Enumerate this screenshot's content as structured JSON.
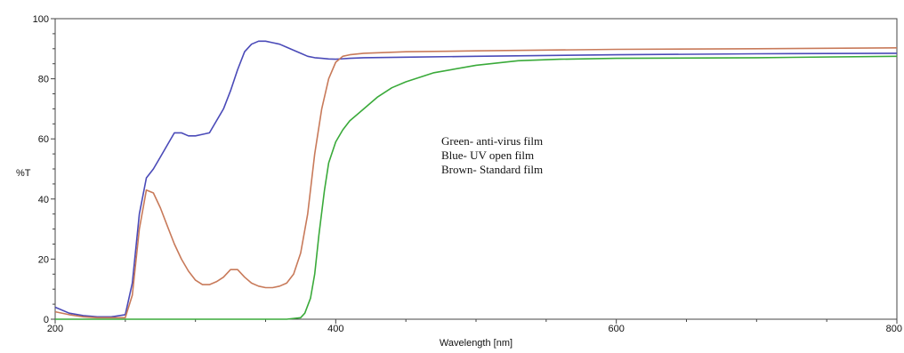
{
  "chart_data": {
    "type": "line",
    "xlabel": "Wavelength [nm]",
    "ylabel": "%T",
    "xlim": [
      200,
      800
    ],
    "ylim": [
      0,
      100
    ],
    "x_ticks": [
      200,
      400,
      600,
      800
    ],
    "y_ticks": [
      0,
      20,
      40,
      60,
      80,
      100
    ],
    "grid": false,
    "annotations": [
      "Green- anti-virus film",
      "Blue- UV open film",
      "Brown- Standard film"
    ],
    "series": [
      {
        "name": "Blue- UV open film",
        "color": "#4a4ab8",
        "x": [
          200,
          210,
          220,
          230,
          240,
          250,
          255,
          260,
          265,
          270,
          275,
          280,
          285,
          290,
          295,
          300,
          305,
          310,
          315,
          320,
          325,
          330,
          335,
          340,
          345,
          350,
          355,
          360,
          365,
          370,
          375,
          380,
          385,
          390,
          395,
          400,
          410,
          420,
          450,
          500,
          600,
          700,
          800
        ],
        "y": [
          4,
          2,
          1.2,
          0.8,
          0.8,
          1.5,
          12,
          35,
          47,
          50,
          54,
          58,
          62,
          62,
          61,
          61,
          61.5,
          62,
          66,
          70,
          76,
          83,
          89,
          91.5,
          92.5,
          92.5,
          92,
          91.5,
          90.5,
          89.5,
          88.5,
          87.5,
          87,
          86.8,
          86.6,
          86.5,
          86.8,
          87,
          87.2,
          87.5,
          88,
          88.3,
          88.5
        ]
      },
      {
        "name": "Brown- Standard film",
        "color": "#c87a5a",
        "x": [
          200,
          210,
          220,
          230,
          240,
          250,
          255,
          260,
          265,
          270,
          275,
          280,
          285,
          290,
          295,
          300,
          305,
          310,
          315,
          320,
          325,
          330,
          335,
          340,
          345,
          350,
          355,
          360,
          365,
          370,
          375,
          380,
          385,
          390,
          395,
          400,
          405,
          410,
          420,
          450,
          500,
          600,
          700,
          800
        ],
        "y": [
          2.5,
          1.5,
          0.8,
          0.5,
          0.5,
          0.5,
          8,
          30,
          43,
          42,
          37,
          31,
          25,
          20,
          16,
          13,
          11.5,
          11.5,
          12.5,
          14,
          16.5,
          16.5,
          14,
          12,
          11,
          10.5,
          10.5,
          11,
          12,
          15,
          22,
          35,
          55,
          70,
          80,
          85.5,
          87.5,
          88,
          88.5,
          89,
          89.3,
          89.8,
          90,
          90.3
        ]
      },
      {
        "name": "Green- anti-virus film",
        "color": "#3aaa3a",
        "x": [
          200,
          300,
          350,
          365,
          375,
          378,
          382,
          385,
          388,
          392,
          395,
          400,
          405,
          410,
          420,
          430,
          440,
          450,
          470,
          500,
          530,
          560,
          600,
          700,
          800
        ],
        "y": [
          0,
          0,
          0,
          0,
          0.5,
          2,
          7,
          15,
          28,
          43,
          52,
          59,
          63,
          66,
          70,
          74,
          77,
          79,
          82,
          84.5,
          86,
          86.5,
          86.8,
          87,
          87.5
        ]
      }
    ]
  }
}
